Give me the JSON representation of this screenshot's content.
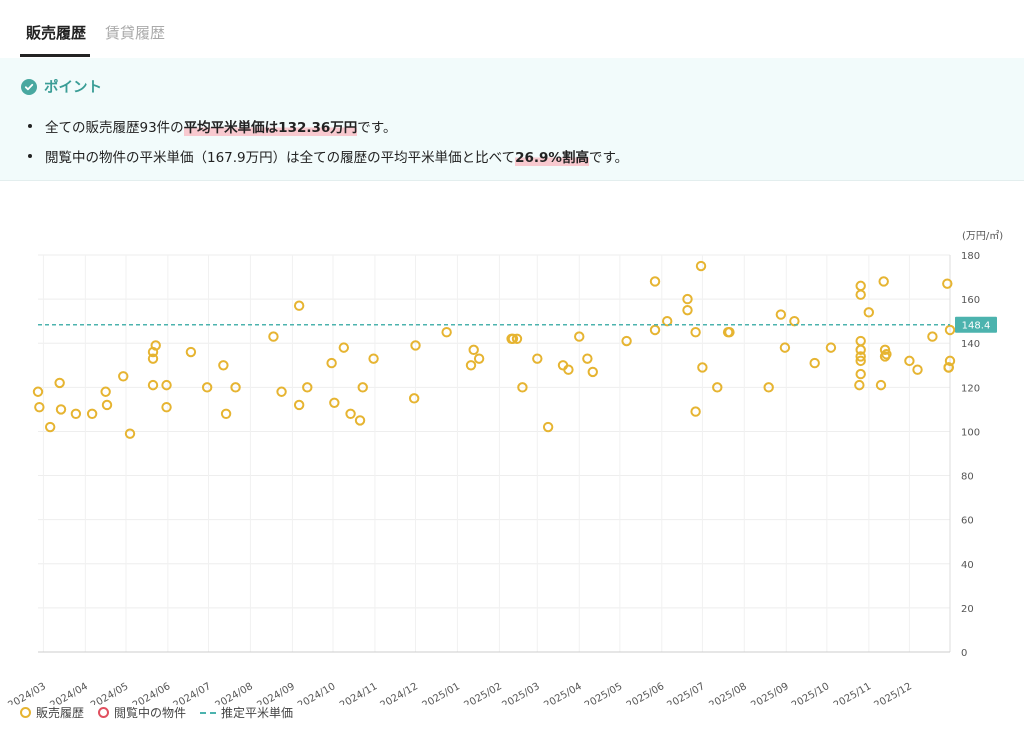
{
  "tabs": {
    "sales": "販売履歴",
    "rental": "賃貸履歴"
  },
  "point": {
    "title": "ポイント",
    "b1_pre": "全ての販売履歴93件の",
    "b1_hl": "平均平米単価は132.36万円",
    "b1_post": "です。",
    "b2_pre": "閲覧中の物件の平米単価（167.9万円）は全ての履歴の平均平米単価と比べて",
    "b2_hl": "26.9%割高",
    "b2_post": "です。"
  },
  "legend": {
    "sales": "販売履歴",
    "viewing": "閲覧中の物件",
    "estimate": "推定平米単価"
  },
  "colors": {
    "accent": "#49a8a0",
    "sales_point": "#e6b431",
    "viewing_point": "#e0505f",
    "estimate_line": "#4cb3ae"
  },
  "chart_data": {
    "type": "scatter",
    "ylabel": "(万円/㎡)",
    "ylim": [
      0,
      180
    ],
    "yticks": [
      0,
      20,
      40,
      60,
      80,
      100,
      120,
      140,
      160,
      180
    ],
    "xlim": [
      "2024-02-26",
      "2025-12-31"
    ],
    "xticks": [
      {
        "date": "2024-03-01",
        "label": "2024/03"
      },
      {
        "date": "2024-04-01",
        "label": "2024/04"
      },
      {
        "date": "2024-05-01",
        "label": "2024/05"
      },
      {
        "date": "2024-06-01",
        "label": "2024/06"
      },
      {
        "date": "2024-07-01",
        "label": "2024/07"
      },
      {
        "date": "2024-08-01",
        "label": "2024/08"
      },
      {
        "date": "2024-09-01",
        "label": "2024/09"
      },
      {
        "date": "2024-10-01",
        "label": "2024/10"
      },
      {
        "date": "2024-11-01",
        "label": "2024/11"
      },
      {
        "date": "2024-12-01",
        "label": "2024/12"
      },
      {
        "date": "2025-01-01",
        "label": "2025/01"
      },
      {
        "date": "2025-02-01",
        "label": "2025/02"
      },
      {
        "date": "2025-03-01",
        "label": "2025/03"
      },
      {
        "date": "2025-04-01",
        "label": "2025/04"
      },
      {
        "date": "2025-05-01",
        "label": "2025/05"
      },
      {
        "date": "2025-06-01",
        "label": "2025/06"
      },
      {
        "date": "2025-07-01",
        "label": "2025/07"
      },
      {
        "date": "2025-08-01",
        "label": "2025/08"
      },
      {
        "date": "2025-09-01",
        "label": "2025/09"
      },
      {
        "date": "2025-10-01",
        "label": "2025/10"
      },
      {
        "date": "2025-11-01",
        "label": "2025/11"
      },
      {
        "date": "2025-12-01",
        "label": "2025/12"
      }
    ],
    "estimate_line": {
      "value": 148.4,
      "label": "148.4"
    },
    "series": [
      {
        "name": "販売履歴",
        "points": [
          {
            "x": "2024-02-26",
            "y": 118
          },
          {
            "x": "2024-02-27",
            "y": 111
          },
          {
            "x": "2024-03-06",
            "y": 102
          },
          {
            "x": "2024-03-13",
            "y": 122
          },
          {
            "x": "2024-03-14",
            "y": 110
          },
          {
            "x": "2024-03-25",
            "y": 108
          },
          {
            "x": "2024-04-06",
            "y": 108
          },
          {
            "x": "2024-04-16",
            "y": 118
          },
          {
            "x": "2024-04-17",
            "y": 112
          },
          {
            "x": "2024-04-29",
            "y": 125
          },
          {
            "x": "2024-05-04",
            "y": 99
          },
          {
            "x": "2024-05-21",
            "y": 136
          },
          {
            "x": "2024-05-21",
            "y": 133
          },
          {
            "x": "2024-05-21",
            "y": 121
          },
          {
            "x": "2024-05-23",
            "y": 139
          },
          {
            "x": "2024-05-31",
            "y": 121
          },
          {
            "x": "2024-05-31",
            "y": 111
          },
          {
            "x": "2024-06-18",
            "y": 136
          },
          {
            "x": "2024-06-30",
            "y": 120
          },
          {
            "x": "2024-07-12",
            "y": 130
          },
          {
            "x": "2024-07-14",
            "y": 108
          },
          {
            "x": "2024-07-21",
            "y": 120
          },
          {
            "x": "2024-08-18",
            "y": 143
          },
          {
            "x": "2024-08-24",
            "y": 118
          },
          {
            "x": "2024-09-06",
            "y": 157
          },
          {
            "x": "2024-09-06",
            "y": 112
          },
          {
            "x": "2024-09-12",
            "y": 120
          },
          {
            "x": "2024-09-30",
            "y": 131
          },
          {
            "x": "2024-10-02",
            "y": 113
          },
          {
            "x": "2024-10-09",
            "y": 138
          },
          {
            "x": "2024-10-14",
            "y": 108
          },
          {
            "x": "2024-10-21",
            "y": 105
          },
          {
            "x": "2024-10-23",
            "y": 120
          },
          {
            "x": "2024-10-31",
            "y": 133
          },
          {
            "x": "2024-11-30",
            "y": 115
          },
          {
            "x": "2024-12-01",
            "y": 139
          },
          {
            "x": "2024-12-24",
            "y": 145
          },
          {
            "x": "2025-01-11",
            "y": 130
          },
          {
            "x": "2025-01-13",
            "y": 137
          },
          {
            "x": "2025-01-17",
            "y": 133
          },
          {
            "x": "2025-02-10",
            "y": 142
          },
          {
            "x": "2025-02-11",
            "y": 142
          },
          {
            "x": "2025-02-14",
            "y": 142
          },
          {
            "x": "2025-02-18",
            "y": 120
          },
          {
            "x": "2025-03-01",
            "y": 133
          },
          {
            "x": "2025-03-09",
            "y": 102
          },
          {
            "x": "2025-03-20",
            "y": 130
          },
          {
            "x": "2025-03-24",
            "y": 128
          },
          {
            "x": "2025-04-01",
            "y": 143
          },
          {
            "x": "2025-04-07",
            "y": 133
          },
          {
            "x": "2025-04-11",
            "y": 127
          },
          {
            "x": "2025-05-06",
            "y": 141
          },
          {
            "x": "2025-05-27",
            "y": 168
          },
          {
            "x": "2025-05-27",
            "y": 146
          },
          {
            "x": "2025-06-05",
            "y": 150
          },
          {
            "x": "2025-06-20",
            "y": 160
          },
          {
            "x": "2025-06-20",
            "y": 155
          },
          {
            "x": "2025-06-26",
            "y": 145
          },
          {
            "x": "2025-06-26",
            "y": 109
          },
          {
            "x": "2025-06-30",
            "y": 175
          },
          {
            "x": "2025-07-01",
            "y": 129
          },
          {
            "x": "2025-07-12",
            "y": 120
          },
          {
            "x": "2025-07-20",
            "y": 145
          },
          {
            "x": "2025-07-21",
            "y": 145
          },
          {
            "x": "2025-08-19",
            "y": 120
          },
          {
            "x": "2025-08-28",
            "y": 153
          },
          {
            "x": "2025-08-31",
            "y": 138
          },
          {
            "x": "2025-09-07",
            "y": 150
          },
          {
            "x": "2025-09-22",
            "y": 131
          },
          {
            "x": "2025-10-04",
            "y": 138
          },
          {
            "x": "2025-10-26",
            "y": 166
          },
          {
            "x": "2025-10-26",
            "y": 162
          },
          {
            "x": "2025-10-26",
            "y": 141
          },
          {
            "x": "2025-10-26",
            "y": 137
          },
          {
            "x": "2025-10-26",
            "y": 134
          },
          {
            "x": "2025-10-26",
            "y": 132
          },
          {
            "x": "2025-10-26",
            "y": 126
          },
          {
            "x": "2025-10-25",
            "y": 121
          },
          {
            "x": "2025-11-01",
            "y": 154
          },
          {
            "x": "2025-11-10",
            "y": 121
          },
          {
            "x": "2025-11-12",
            "y": 168
          },
          {
            "x": "2025-11-13",
            "y": 137
          },
          {
            "x": "2025-11-13",
            "y": 134
          },
          {
            "x": "2025-11-14",
            "y": 135
          },
          {
            "x": "2025-12-01",
            "y": 132
          },
          {
            "x": "2025-12-07",
            "y": 128
          },
          {
            "x": "2025-12-18",
            "y": 143
          },
          {
            "x": "2025-12-29",
            "y": 167
          },
          {
            "x": "2025-12-30",
            "y": 129
          },
          {
            "x": "2025-12-30",
            "y": 129
          },
          {
            "x": "2025-12-31",
            "y": 146
          },
          {
            "x": "2025-12-31",
            "y": 132
          },
          {
            "x": "2025-12-30",
            "y": 129
          }
        ]
      }
    ]
  }
}
